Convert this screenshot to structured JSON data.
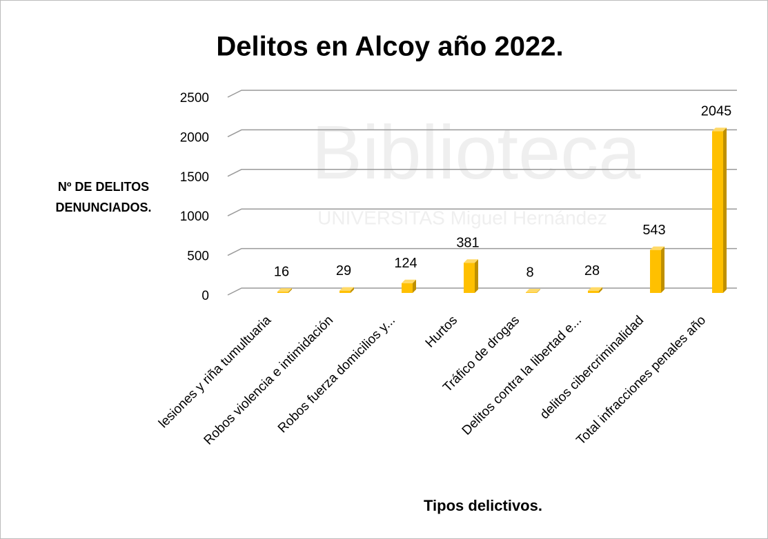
{
  "chart_data": {
    "type": "bar",
    "title": "Delitos en Alcoy año 2022.",
    "y_label": [
      "Nº DE DELITOS",
      "DENUNCIADOS."
    ],
    "x_label": "Tipos delictivos.",
    "watermark": [
      "Biblioteca",
      "UNIVERSITAS Miguel Hernández"
    ],
    "categories": [
      "lesiones y riña tumultuaria",
      "Robos violencia e intimidación",
      "Robos fuerza domicilios y...",
      "Hurtos",
      "Tráfico de drogas",
      "Delitos contra la libertad e...",
      "delitos cibercriminalidad",
      "Total infracciones penales año"
    ],
    "values": [
      16,
      29,
      124,
      381,
      8,
      28,
      543,
      2045
    ],
    "color": "#FFC000",
    "ylim": [
      0,
      2500
    ],
    "yticks": [
      0,
      500,
      1000,
      1500,
      2000,
      2500
    ],
    "grid": true
  }
}
